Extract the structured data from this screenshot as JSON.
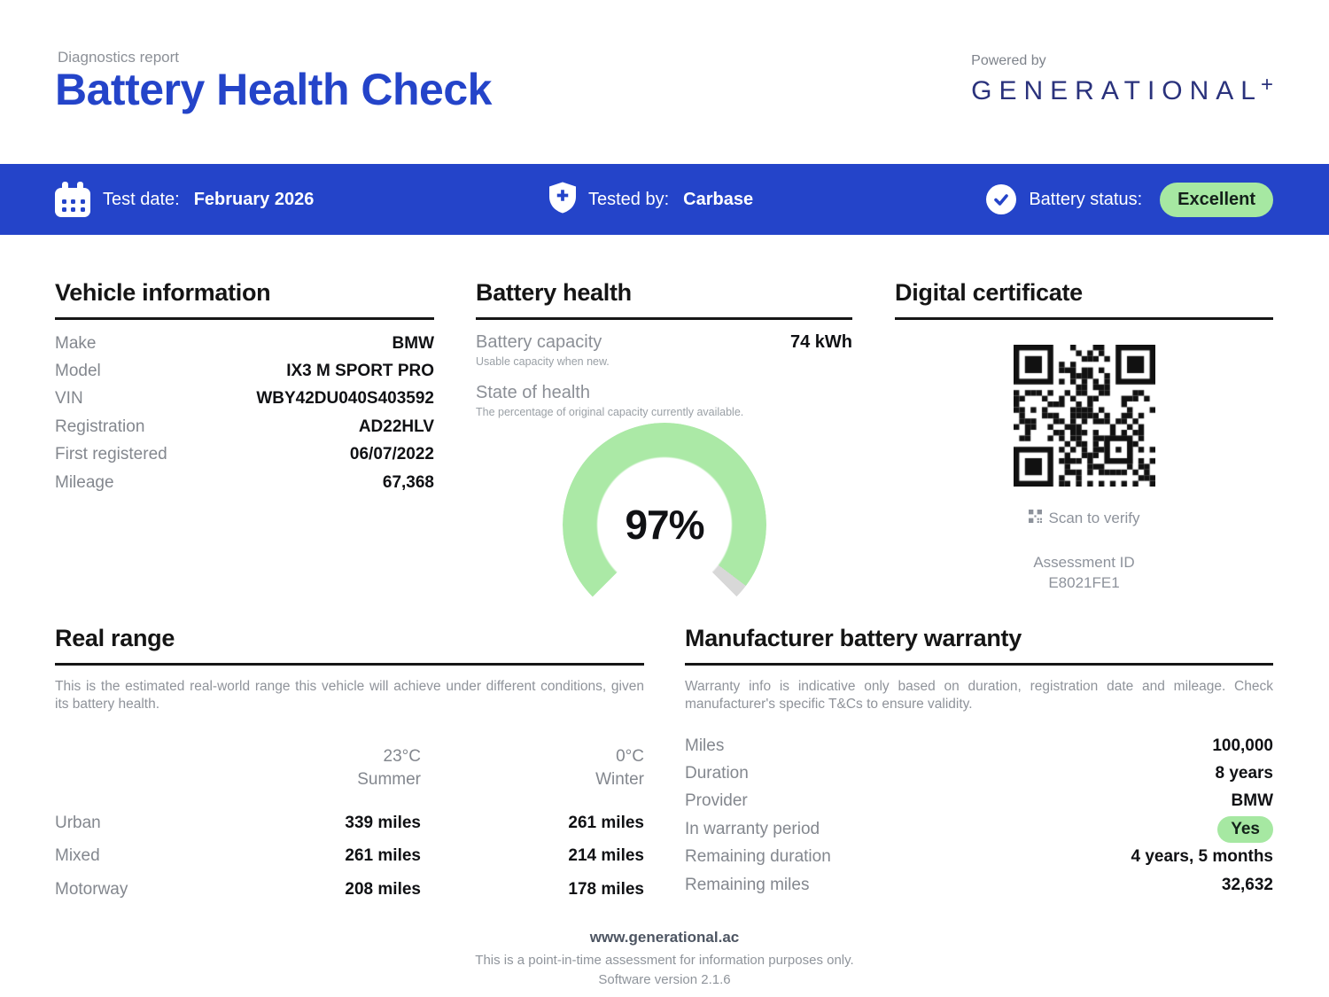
{
  "header": {
    "kicker": "Diagnostics report",
    "title": "Battery Health Check",
    "powered_by": "Powered by",
    "brand": "GENERATIONAL",
    "brand_plus": "+"
  },
  "status_bar": {
    "test_date_label": "Test date:",
    "test_date_value": "February 2026",
    "tested_by_label": "Tested by:",
    "tested_by_value": "Carbase",
    "battery_status_label": "Battery status:",
    "battery_status_value": "Excellent"
  },
  "vehicle_info": {
    "title": "Vehicle information",
    "rows": [
      {
        "label": "Make",
        "value": "BMW"
      },
      {
        "label": "Model",
        "value": "IX3 M SPORT PRO"
      },
      {
        "label": "VIN",
        "value": "WBY42DU040S403592"
      },
      {
        "label": "Registration",
        "value": "AD22HLV"
      },
      {
        "label": "First registered",
        "value": "06/07/2022"
      },
      {
        "label": "Mileage",
        "value": "67,368"
      }
    ]
  },
  "battery_health": {
    "title": "Battery health",
    "capacity_label": "Battery capacity",
    "capacity_value": "74 kWh",
    "capacity_note": "Usable capacity when new.",
    "soh_label": "State of health",
    "soh_note": "The percentage of original capacity currently available.",
    "soh_percent_text": "97%",
    "soh_percent_value": 97,
    "gauge_sweep_degrees": 270
  },
  "certificate": {
    "title": "Digital certificate",
    "scan_label": "Scan to verify",
    "assessment_id_label": "Assessment ID",
    "assessment_id_value": "E8021FE1"
  },
  "real_range": {
    "title": "Real range",
    "description": "This is the estimated real-world range this vehicle will achieve under different conditions, given its battery health.",
    "columns": [
      {
        "temp": "23°C",
        "season": "Summer"
      },
      {
        "temp": "0°C",
        "season": "Winter"
      }
    ],
    "rows": [
      {
        "label": "Urban",
        "summer": "339 miles",
        "winter": "261 miles"
      },
      {
        "label": "Mixed",
        "summer": "261 miles",
        "winter": "214 miles"
      },
      {
        "label": "Motorway",
        "summer": "208 miles",
        "winter": "178 miles"
      }
    ]
  },
  "warranty": {
    "title": "Manufacturer battery warranty",
    "description": "Warranty info is indicative only based on duration, registration date and mileage. Check manufacturer's specific T&Cs to ensure validity.",
    "rows": [
      {
        "label": "Miles",
        "value": "100,000"
      },
      {
        "label": "Duration",
        "value": "8 years"
      },
      {
        "label": "Provider",
        "value": "BMW"
      },
      {
        "label": "In warranty period",
        "value": "Yes"
      },
      {
        "label": "Remaining duration",
        "value": "4 years, 5 months"
      },
      {
        "label": "Remaining miles",
        "value": "32,632"
      }
    ]
  },
  "footer": {
    "website": "www.generational.ac",
    "disclaimer": "This is a point-in-time assessment for information purposes only.",
    "version": "Software version 2.1.6"
  },
  "colors": {
    "accent_blue": "#2444c9",
    "brand_navy": "#2a327c",
    "badge_green": "#a6e8a2",
    "gauge_green": "#abe9a6",
    "gauge_gray": "#d8d8d8"
  }
}
